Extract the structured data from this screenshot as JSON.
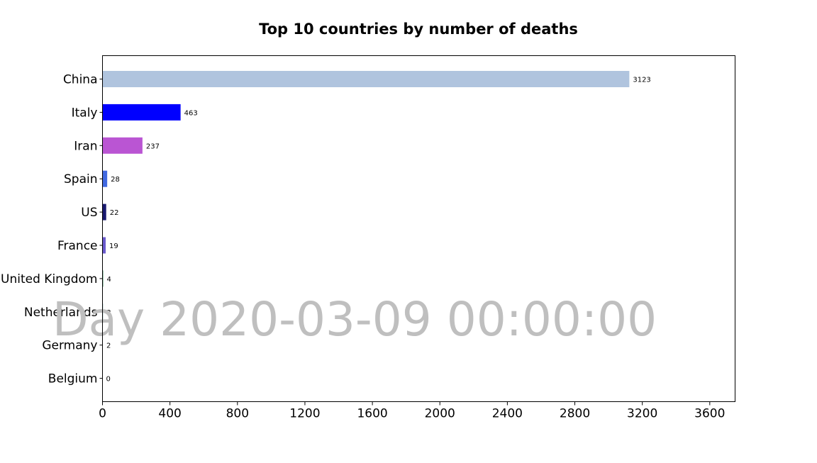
{
  "chart_data": {
    "type": "bar",
    "orientation": "horizontal",
    "title": "Top 10 countries by number of deaths",
    "xlabel": "",
    "ylabel": "",
    "categories": [
      "China",
      "Italy",
      "Iran",
      "Spain",
      "US",
      "France",
      "United Kingdom",
      "Netherlands",
      "Germany",
      "Belgium"
    ],
    "values": [
      3123,
      463,
      237,
      28,
      22,
      19,
      4,
      3,
      2,
      0
    ],
    "colors": [
      "#b0c4de",
      "#0000ff",
      "#ba55d3",
      "#4169e1",
      "#191970",
      "#6a5acd",
      "#2e8b57",
      "#5f9ea0",
      "#4682b4",
      "#000080"
    ],
    "data_labels": [
      "3123",
      "463",
      "237",
      "28",
      "22",
      "19",
      "4",
      "3",
      "2",
      "0"
    ],
    "xlim": [
      0,
      3750
    ],
    "xticks": [
      0,
      400,
      800,
      1200,
      1600,
      2000,
      2400,
      2800,
      3200,
      3600
    ],
    "xtick_labels": [
      "0",
      "400",
      "800",
      "1200",
      "1600",
      "2000",
      "2400",
      "2800",
      "3200",
      "3600"
    ],
    "grid": false,
    "legend": "none",
    "annotation": "Day 2020-03-09 00:00:00"
  }
}
